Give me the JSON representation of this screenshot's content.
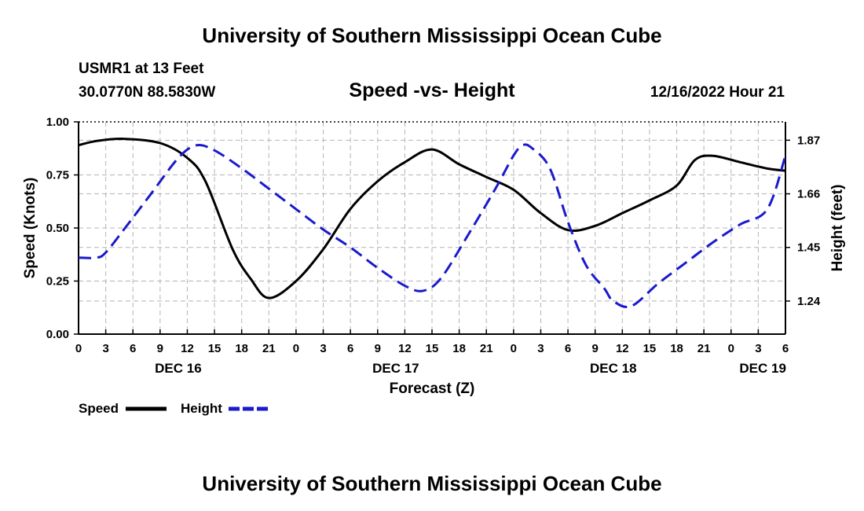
{
  "header": {
    "main_title": "University of Southern Mississippi Ocean Cube",
    "station": "USMR1 at 13 Feet",
    "coords": "30.0770N  88.5830W",
    "datetime": "12/16/2022 Hour 21",
    "footer_title": "University of Southern Mississippi Ocean Cube"
  },
  "chart_data": {
    "type": "line",
    "title": "Speed -vs- Height",
    "xlabel": "Forecast (Z)",
    "ylabel": "Speed (Knots)",
    "ylabel_right": "Height (feet)",
    "xlim": [
      0,
      78
    ],
    "ylim": [
      0,
      1
    ],
    "ylim_right": [
      1.1104,
      1.9419
    ],
    "grid": true,
    "x_ticks": [
      0,
      3,
      6,
      9,
      12,
      15,
      18,
      21,
      24,
      27,
      30,
      33,
      36,
      39,
      42,
      45,
      48,
      51,
      54,
      57,
      60,
      63,
      66,
      69,
      72,
      75,
      78
    ],
    "x_tick_labels": [
      "0",
      "3",
      "6",
      "9",
      "12",
      "15",
      "18",
      "21",
      "0",
      "3",
      "6",
      "9",
      "12",
      "15",
      "18",
      "21",
      "0",
      "3",
      "6",
      "9",
      "12",
      "15",
      "18",
      "21",
      "0",
      "3",
      "6"
    ],
    "day_labels": [
      {
        "x": 11,
        "label": "DEC 16"
      },
      {
        "x": 35,
        "label": "DEC 17"
      },
      {
        "x": 59,
        "label": "DEC 18"
      },
      {
        "x": 75.5,
        "label": "DEC 19"
      }
    ],
    "y_ticks": [
      0,
      0.25,
      0.5,
      0.75,
      1.0
    ],
    "y_tick_labels": [
      "0.00",
      "0.25",
      "0.50",
      "0.75",
      "1.00"
    ],
    "y_ticks_right": [
      1.24,
      1.45,
      1.66,
      1.87
    ],
    "y_tick_labels_right": [
      "1.24",
      "1.45",
      "1.66",
      "1.87"
    ],
    "series": [
      {
        "name": "Speed",
        "axis": "left",
        "color": "#000000",
        "dash": false,
        "x": [
          0,
          2,
          5,
          9,
          12,
          14,
          17,
          19,
          21,
          24,
          27,
          30,
          33,
          36,
          39,
          42,
          45,
          48,
          51,
          54,
          57,
          60,
          63,
          66,
          68,
          70,
          73,
          76,
          78
        ],
        "values": [
          0.89,
          0.91,
          0.92,
          0.9,
          0.83,
          0.72,
          0.4,
          0.26,
          0.17,
          0.25,
          0.4,
          0.59,
          0.72,
          0.81,
          0.87,
          0.8,
          0.74,
          0.68,
          0.57,
          0.49,
          0.51,
          0.57,
          0.63,
          0.7,
          0.82,
          0.84,
          0.81,
          0.78,
          0.77
        ]
      },
      {
        "name": "Height",
        "axis": "right",
        "color": "#1a1acc",
        "dash": true,
        "x": [
          0,
          2,
          3,
          5,
          8,
          11,
          13,
          15,
          18,
          21,
          24,
          27,
          30,
          33,
          36,
          38,
          40,
          43,
          46,
          48,
          49,
          50,
          52,
          54,
          56,
          58,
          59,
          61,
          64,
          67,
          70,
          73,
          76,
          78
        ],
        "values": [
          1.41,
          1.41,
          1.43,
          1.52,
          1.66,
          1.8,
          1.85,
          1.83,
          1.76,
          1.68,
          1.6,
          1.52,
          1.45,
          1.37,
          1.3,
          1.28,
          1.33,
          1.5,
          1.68,
          1.81,
          1.85,
          1.84,
          1.76,
          1.55,
          1.38,
          1.29,
          1.24,
          1.22,
          1.31,
          1.39,
          1.47,
          1.54,
          1.6,
          1.81
        ]
      }
    ],
    "legend": [
      {
        "label": "Speed",
        "color": "#000000",
        "dash": false
      },
      {
        "label": "Height",
        "color": "#1a1acc",
        "dash": true
      }
    ]
  }
}
